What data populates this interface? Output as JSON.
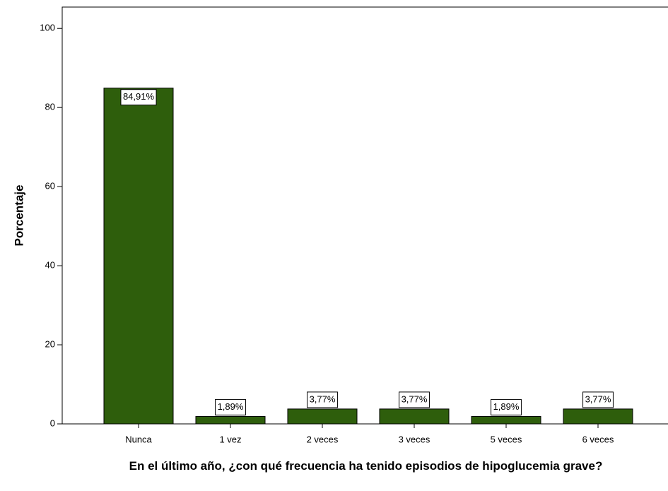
{
  "chart_data": {
    "type": "bar",
    "x_label": "En el último año, ¿con qué frecuencia ha tenido episodios de hipoglucemia grave?",
    "y_label": "Porcentaje",
    "categories": [
      "Nunca",
      "1 vez",
      "2 veces",
      "3 veces",
      "5 veces",
      "6 veces"
    ],
    "values": [
      84.91,
      1.89,
      3.77,
      3.77,
      1.89,
      3.77
    ],
    "value_labels": [
      "84,91%",
      "1,89%",
      "3,77%",
      "3,77%",
      "1,89%",
      "3,77%"
    ],
    "color": "#2e5e0c",
    "ylim": [
      0,
      105.4
    ],
    "yticks": [
      0,
      20,
      40,
      60,
      80,
      100
    ],
    "grid": false
  }
}
